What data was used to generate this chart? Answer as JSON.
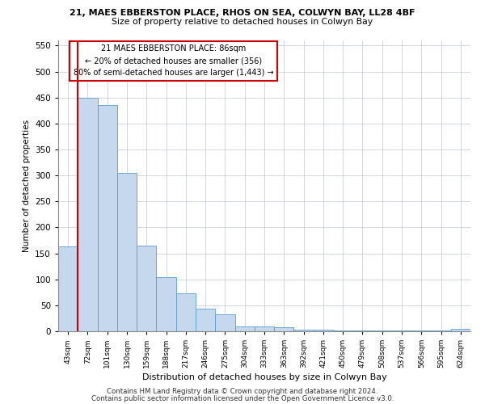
{
  "title1": "21, MAES EBBERSTON PLACE, RHOS ON SEA, COLWYN BAY, LL28 4BF",
  "title2": "Size of property relative to detached houses in Colwyn Bay",
  "xlabel": "Distribution of detached houses by size in Colwyn Bay",
  "ylabel": "Number of detached properties",
  "footer1": "Contains HM Land Registry data © Crown copyright and database right 2024.",
  "footer2": "Contains public sector information licensed under the Open Government Licence v3.0.",
  "categories": [
    "43sqm",
    "72sqm",
    "101sqm",
    "130sqm",
    "159sqm",
    "188sqm",
    "217sqm",
    "246sqm",
    "275sqm",
    "304sqm",
    "333sqm",
    "363sqm",
    "392sqm",
    "421sqm",
    "450sqm",
    "479sqm",
    "508sqm",
    "537sqm",
    "566sqm",
    "595sqm",
    "624sqm"
  ],
  "values": [
    163,
    450,
    435,
    305,
    165,
    105,
    73,
    43,
    33,
    10,
    10,
    8,
    3,
    3,
    2,
    1,
    1,
    1,
    1,
    1,
    4
  ],
  "bar_color": "#c5d8ed",
  "bar_edge_color": "#5b9bd5",
  "grid_color": "#c0c8d8",
  "annotation_box_color": "#ffffff",
  "annotation_box_edge": "#cc0000",
  "redline_color": "#cc0000",
  "redline_x": 1.5,
  "annotation_text1": "21 MAES EBBERSTON PLACE: 86sqm",
  "annotation_text2": "← 20% of detached houses are smaller (356)",
  "annotation_text3": "80% of semi-detached houses are larger (1,443) →",
  "ylim": [
    0,
    560
  ],
  "yticks": [
    0,
    50,
    100,
    150,
    200,
    250,
    300,
    350,
    400,
    450,
    500,
    550
  ]
}
